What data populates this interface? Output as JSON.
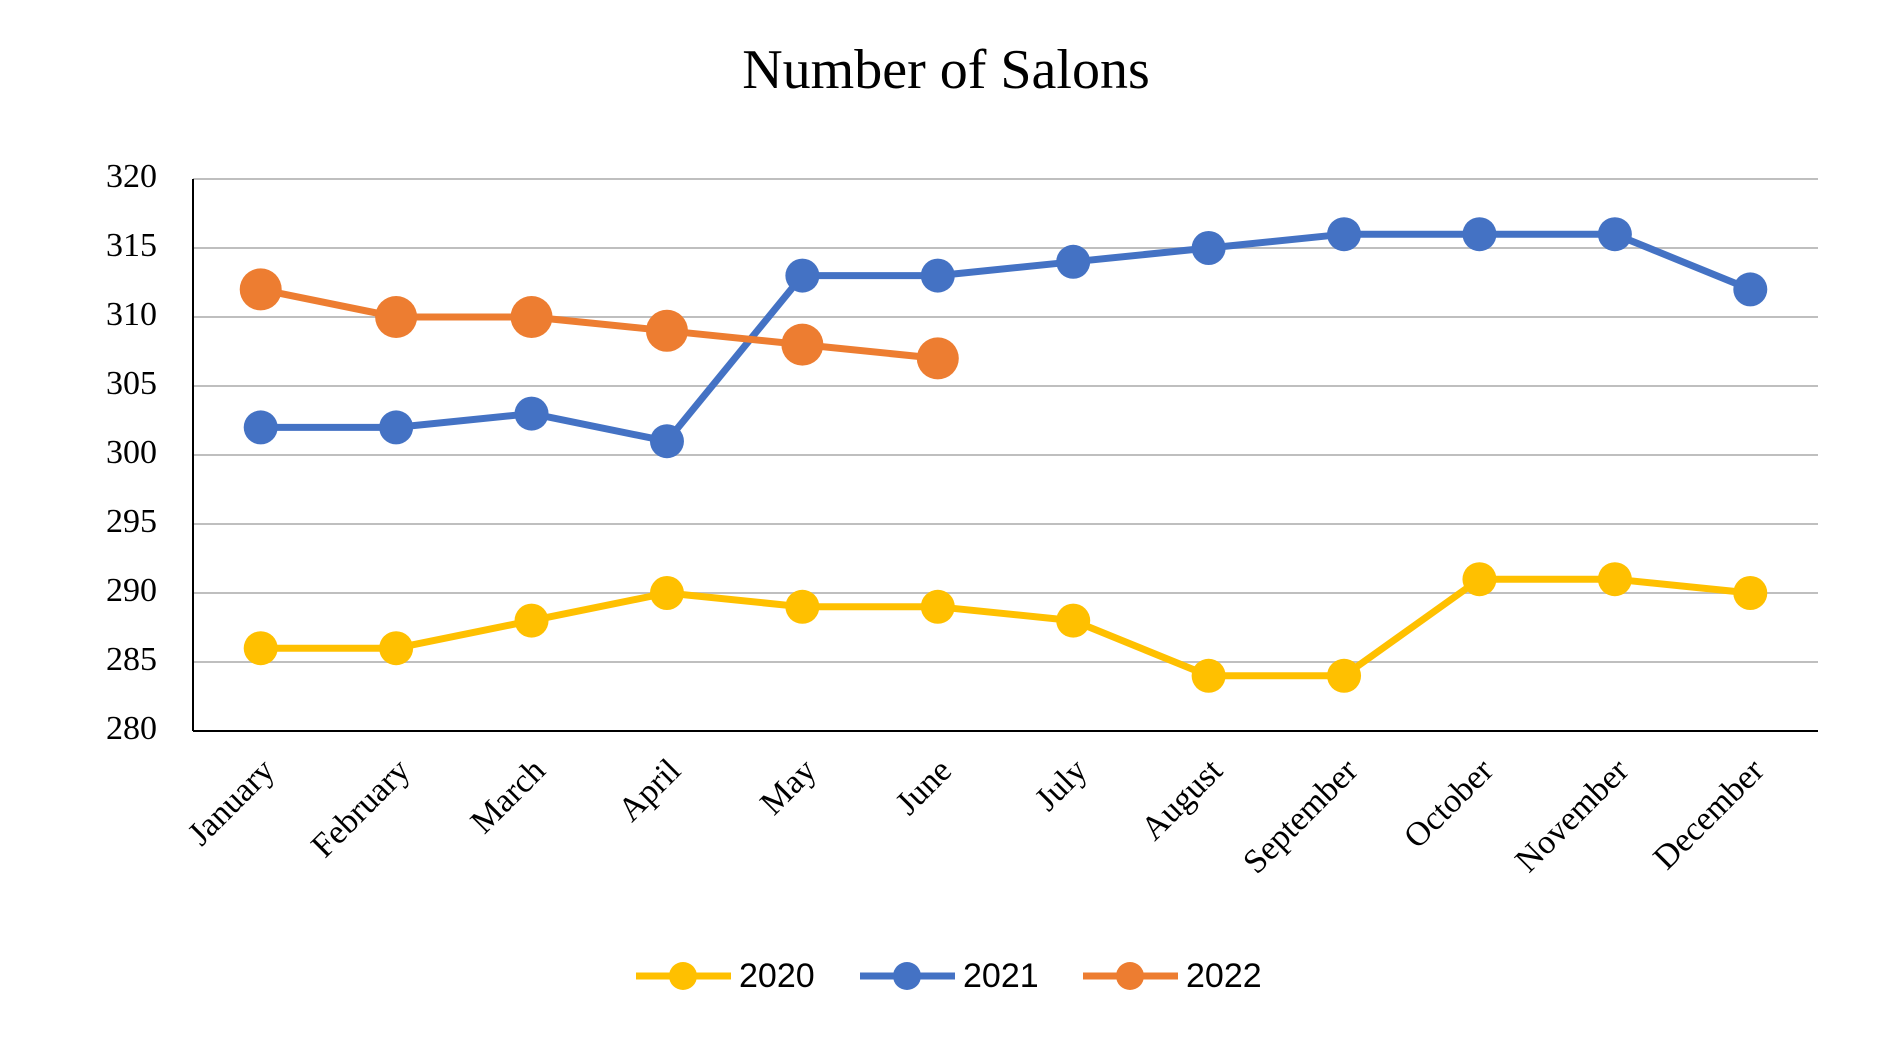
{
  "chart_data": {
    "type": "line",
    "title": "Number of Salons",
    "categories": [
      "January",
      "February",
      "March",
      "April",
      "May",
      "June",
      "July",
      "August",
      "September",
      "October",
      "November",
      "December"
    ],
    "series": [
      {
        "name": "2020",
        "color": "#FFC000",
        "values": [
          286,
          286,
          288,
          290,
          289,
          289,
          288,
          284,
          284,
          291,
          291,
          290
        ]
      },
      {
        "name": "2021",
        "color": "#4472C4",
        "values": [
          302,
          302,
          303,
          301,
          313,
          313,
          314,
          315,
          316,
          316,
          316,
          312
        ]
      },
      {
        "name": "2022",
        "color": "#ED7D31",
        "values": [
          312,
          310,
          310,
          309,
          308,
          307,
          null,
          null,
          null,
          null,
          null,
          null
        ]
      }
    ],
    "ylim": [
      280,
      320
    ],
    "yticks": [
      280,
      285,
      290,
      295,
      300,
      305,
      310,
      315,
      320
    ],
    "grid": true,
    "legend": "bottom"
  }
}
